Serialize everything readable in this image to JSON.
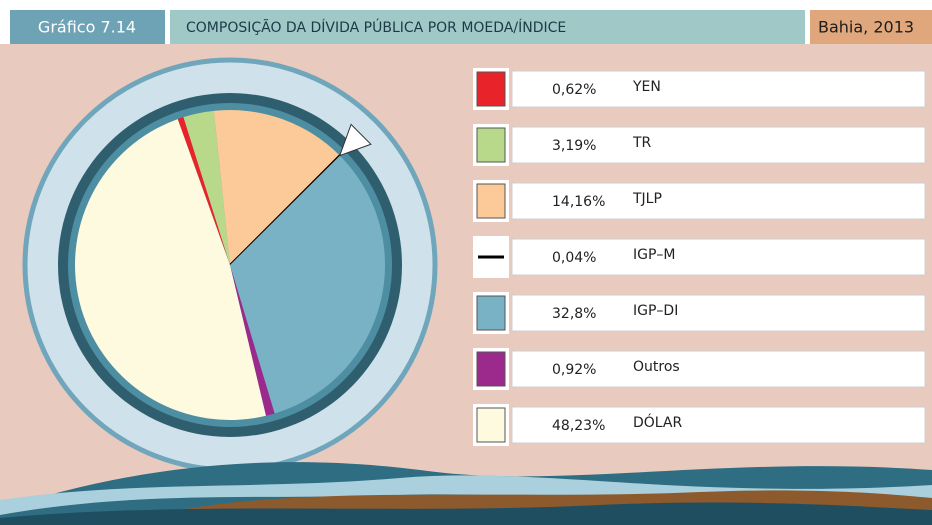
{
  "header": {
    "label": "Gráfico 7.14",
    "title": "COMPOSIÇÃO DA DÍVIDA PÚBLICA POR MOEDA/ÍNDICE",
    "place": "Bahia, 2013"
  },
  "chart_data": {
    "type": "pie",
    "categories": [
      "YEN",
      "TR",
      "TJLP",
      "IGP–M",
      "IGP–DI",
      "Outros",
      "DÓLAR"
    ],
    "values": [
      0.62,
      3.19,
      14.16,
      0.04,
      32.8,
      0.92,
      48.23
    ],
    "value_labels": [
      "0,62%",
      "3,19%",
      "14,16%",
      "0,04%",
      "32,8%",
      "0,92%",
      "48,23%"
    ],
    "colors": [
      "#e8232a",
      "#b9d98a",
      "#fcc998",
      "#000000",
      "#78b2c4",
      "#9b2a8c",
      "#fefae0"
    ]
  }
}
